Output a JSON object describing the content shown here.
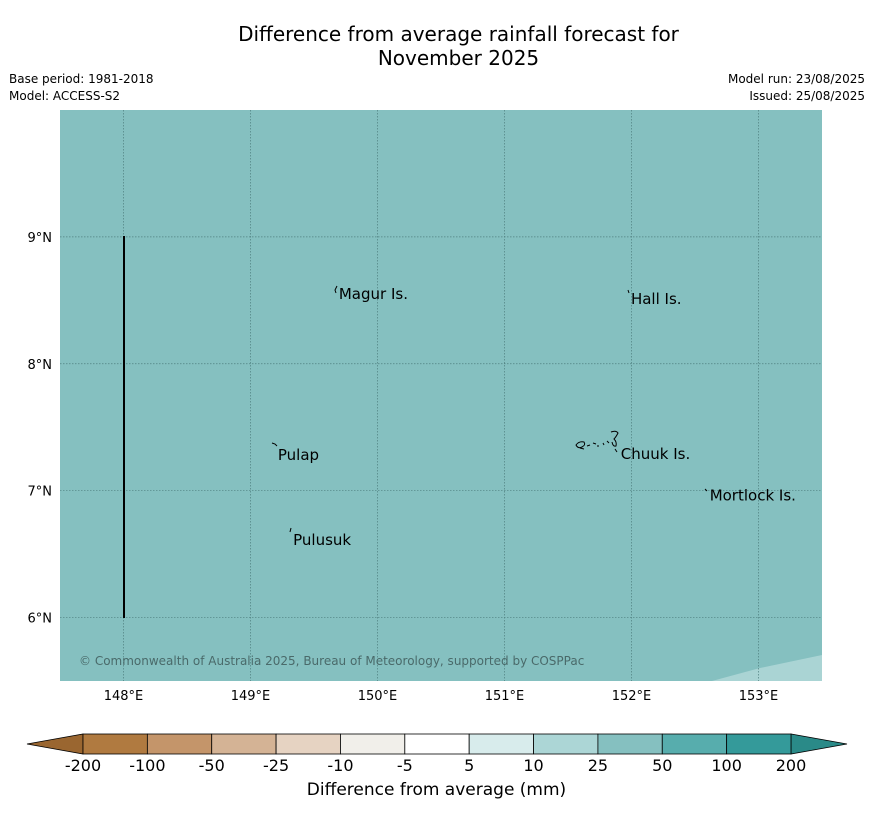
{
  "title_line1": "Difference from average rainfall forecast for",
  "title_line2": "November 2025",
  "base_period": "Base period: 1981-2018",
  "model": "Model: ACCESS-S2",
  "model_run": "Model run: 23/08/2025",
  "issued": "Issued: 25/08/2025",
  "copyright": "© Commonwealth of Australia 2025, Bureau of Meteorology, supported by COSPPac",
  "map": {
    "lon_range": [
      147.5,
      153.5
    ],
    "lat_range": [
      5.5,
      10.0
    ],
    "lon_ticks": [
      {
        "v": 148,
        "label": "148°E"
      },
      {
        "v": 149,
        "label": "149°E"
      },
      {
        "v": 150,
        "label": "150°E"
      },
      {
        "v": 151,
        "label": "151°E"
      },
      {
        "v": 152,
        "label": "152°E"
      },
      {
        "v": 153,
        "label": "153°E"
      }
    ],
    "lat_ticks": [
      {
        "v": 9,
        "label": "9°N"
      },
      {
        "v": 8,
        "label": "8°N"
      },
      {
        "v": 7,
        "label": "7°N"
      },
      {
        "v": 6,
        "label": "6°N"
      }
    ],
    "fill_color": "#85c0c0",
    "corner_fill_color": "#aad4d4",
    "places": [
      {
        "name": "Magur Is.",
        "lon": 149.68,
        "lat": 8.55
      },
      {
        "name": "Hall Is.",
        "lon": 151.98,
        "lat": 8.51
      },
      {
        "name": "Pulap",
        "lon": 149.2,
        "lat": 7.28
      },
      {
        "name": "Chuuk Is.",
        "lon": 151.9,
        "lat": 7.29
      },
      {
        "name": "Mortlock Is.",
        "lon": 152.6,
        "lat": 6.96
      },
      {
        "name": "Pulusuk",
        "lon": 149.32,
        "lat": 6.61
      }
    ]
  },
  "colorbar": {
    "ticks": [
      "-200",
      "-100",
      "-50",
      "-25",
      "-10",
      "-5",
      "5",
      "10",
      "25",
      "50",
      "100",
      "200"
    ],
    "colors": [
      "#b07a40",
      "#c4956a",
      "#d4b395",
      "#e6d3c2",
      "#f1efea",
      "#ffffff",
      "#d8ecec",
      "#acd6d6",
      "#85c0c0",
      "#57adad",
      "#349a9a"
    ],
    "under_color": "#9a6630",
    "over_color": "#2a8a88",
    "label": "Difference from average (mm)"
  }
}
